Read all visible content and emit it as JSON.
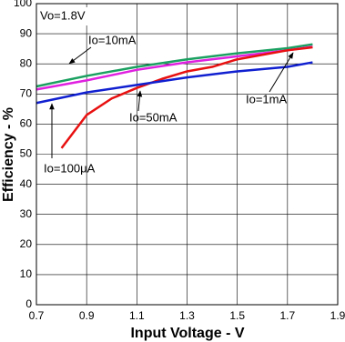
{
  "chart_data": {
    "type": "line",
    "x_label": "Input Voltage - V",
    "y_label": "Efficiency - %",
    "annotation": "Vo=1.8V",
    "xlim": [
      0.7,
      1.9
    ],
    "xticks": [
      0.7,
      0.9,
      1.1,
      1.3,
      1.5,
      1.7,
      1.9
    ],
    "ylim": [
      0,
      100
    ],
    "yticks": [
      0,
      10,
      20,
      30,
      40,
      50,
      60,
      70,
      80,
      90,
      100
    ],
    "grid": true,
    "series": [
      {
        "name": "Io=1mA",
        "color": "#1aa060",
        "x": [
          0.7,
          0.9,
          1.1,
          1.3,
          1.5,
          1.7,
          1.8
        ],
        "values": [
          72.5,
          76,
          79,
          81.5,
          83.5,
          85.2,
          86.5
        ]
      },
      {
        "name": "Io=10mA",
        "color": "#e020e0",
        "x": [
          0.7,
          0.9,
          1.1,
          1.3,
          1.5,
          1.7,
          1.8
        ],
        "values": [
          71.5,
          74.5,
          78,
          80.5,
          82.5,
          84.5,
          85.7
        ]
      },
      {
        "name": "Io=50mA",
        "color": "#e81010",
        "x": [
          0.8,
          0.9,
          1.0,
          1.1,
          1.2,
          1.3,
          1.4,
          1.5,
          1.6,
          1.7,
          1.8
        ],
        "values": [
          52,
          63,
          68.5,
          72,
          75,
          77.5,
          79,
          81.5,
          83,
          84.5,
          85.5
        ]
      },
      {
        "name": "Io=100μA",
        "color": "#1020d0",
        "x": [
          0.7,
          0.9,
          1.1,
          1.3,
          1.5,
          1.7,
          1.8
        ],
        "values": [
          67,
          70.5,
          73,
          75.5,
          77.5,
          79,
          80.5
        ]
      }
    ]
  }
}
